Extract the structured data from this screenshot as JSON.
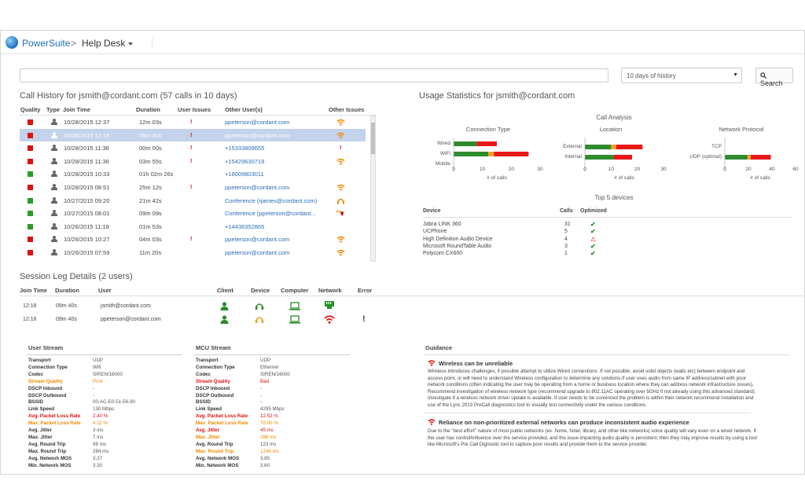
{
  "header": {
    "brand": "PowerSuite",
    "separator": ">",
    "section": "Help Desk"
  },
  "search": {
    "value": "",
    "placeholder": "",
    "history_selected": "10 days of history",
    "button_label": "Search"
  },
  "call_history": {
    "title": "Call History for jsmith@cordant.com (57 calls in 10 days)",
    "columns": [
      "Quality",
      "Type",
      "Join Time",
      "Duration",
      "User Issues",
      "Other User(s)",
      "Other Issues"
    ],
    "rows": [
      {
        "quality": "red",
        "join": "10/28/2015 12:37",
        "duration": "12m 03s",
        "user_issue": "!",
        "other": "ppeterson@cordant.com",
        "other_issue": "wifi-red"
      },
      {
        "quality": "red",
        "join": "10/28/2015 12:16",
        "duration": "09m 40s",
        "user_issue": "!",
        "other": "ppeterson@cordant.com",
        "other_issue": "wifi-red",
        "selected": true
      },
      {
        "quality": "red",
        "join": "10/28/2015 11:36",
        "duration": "00m 00s",
        "user_issue": "!",
        "other": "+15333809655",
        "other_issue": "!"
      },
      {
        "quality": "red",
        "join": "10/28/2015 11:36",
        "duration": "03m 55s",
        "user_issue": "!",
        "other": "+15429630719",
        "other_issue": "wifi-red"
      },
      {
        "quality": "green",
        "join": "10/28/2015 10:33",
        "duration": "01h 02m 26s",
        "user_issue": "",
        "other": "+18009803011",
        "other_issue": ""
      },
      {
        "quality": "red",
        "join": "10/28/2015 08:51",
        "duration": "25m 12s",
        "user_issue": "!",
        "other": "ppeterson@cordant.com",
        "other_issue": "wifi-red"
      },
      {
        "quality": "green",
        "join": "10/27/2015 09:20",
        "duration": "21m 42s",
        "user_issue": "",
        "other": "Conference (rjames@cordant.com)",
        "other_issue": "headset-orange"
      },
      {
        "quality": "green",
        "join": "10/27/2015 08:01",
        "duration": "09m 09s",
        "user_issue": "",
        "other": "Conference (ppeterson@cordant...",
        "other_issue": "wifi-heart"
      },
      {
        "quality": "green",
        "join": "10/26/2015 11:18",
        "duration": "01m 53s",
        "user_issue": "",
        "other": "+14436352865",
        "other_issue": ""
      },
      {
        "quality": "red",
        "join": "10/26/2015 10:27",
        "duration": "04m 03s",
        "user_issue": "!",
        "other": "ppeterson@cordant.com",
        "other_issue": "wifi-red"
      },
      {
        "quality": "red",
        "join": "10/26/2015 07:59",
        "duration": "11m 20s",
        "user_issue": "",
        "other": "ppeterson@cordant.com",
        "other_issue": "wifi-red"
      }
    ]
  },
  "usage": {
    "title": "Usage Statistics for jsmith@cordant.com",
    "call_analysis": "Call Analysis",
    "colors": {
      "good": "#2e8b2e",
      "warn": "#f0a020",
      "bad": "#e81818"
    },
    "charts": [
      {
        "title": "Connection Type",
        "xlabel": "# of calls",
        "ticks": [
          "0",
          "10",
          "20",
          "30"
        ],
        "xmax": 30,
        "rows": [
          {
            "label": "Wired",
            "good": 8,
            "warn": 0,
            "bad": 7
          },
          {
            "label": "WiFi",
            "good": 12,
            "warn": 2,
            "bad": 12
          },
          {
            "label": "Mobile",
            "good": 0,
            "warn": 0,
            "bad": 0
          }
        ]
      },
      {
        "title": "Location",
        "xlabel": "# of calls",
        "ticks": [
          "0",
          "10",
          "20",
          "30"
        ],
        "xmax": 30,
        "rows": [
          {
            "label": "External",
            "good": 10,
            "warn": 2,
            "bad": 10
          },
          {
            "label": "Internal",
            "good": 11,
            "warn": 0,
            "bad": 7
          }
        ]
      },
      {
        "title": "Network Protocol",
        "xlabel": "# of calls",
        "ticks": [
          "0",
          "20",
          "40",
          "60"
        ],
        "xmax": 60,
        "rows": [
          {
            "label": "TCP",
            "good": 0,
            "warn": 0,
            "bad": 0
          },
          {
            "label": "UDP (optimal)",
            "good": 19,
            "warn": 3,
            "bad": 17
          }
        ]
      }
    ],
    "top5_title": "Top 5 devices",
    "device_headers": [
      "Device",
      "Calls",
      "Optimized"
    ],
    "devices": [
      {
        "name": "Jabra LINK 360",
        "calls": "31",
        "status": "✔"
      },
      {
        "name": "UCPhone",
        "calls": "5",
        "status": "✔"
      },
      {
        "name": "High Definition Audio Device",
        "calls": "4",
        "status": "⚠"
      },
      {
        "name": "Microsoft RoundTable Audio",
        "calls": "3",
        "status": "✔"
      },
      {
        "name": "Polycom CX600",
        "calls": "1",
        "status": "✔"
      }
    ]
  },
  "session": {
    "title": "Session Leg Details (2 users)",
    "headers": [
      "Join Time",
      "Duration",
      "User",
      "Client",
      "Device",
      "Computer",
      "Network",
      "Error"
    ],
    "rows": [
      {
        "time": "12:16",
        "duration": "09m 40s",
        "user": "jsmith@cordant.com"
      },
      {
        "time": "12:16",
        "duration": "09m 40s",
        "user": "ppeterson@cordant.com"
      }
    ]
  },
  "user_stream": {
    "title": "User Stream",
    "rows": [
      {
        "label": "Transport",
        "value": "UDP",
        "style": "n"
      },
      {
        "label": "Connection Type",
        "value": "Wifi",
        "style": "n"
      },
      {
        "label": "Codec",
        "value": "SIREN/16000",
        "style": "n"
      },
      {
        "label": "Stream Quality",
        "value": "Poor",
        "style": "o"
      },
      {
        "label": "DSCP Inbound",
        "value": "-",
        "style": "n"
      },
      {
        "label": "DSCP Outbound",
        "value": "-",
        "style": "n"
      },
      {
        "label": "BSSID",
        "value": "00-AC-E0-51-56-90",
        "style": "n"
      },
      {
        "label": "Link Speed",
        "value": "130 Mbps",
        "style": "n"
      },
      {
        "label": "Avg. Packet Loss Rate",
        "value": "2.40 %",
        "style": "r"
      },
      {
        "label": "Max. Packet Loss Rate",
        "value": "4.11 %",
        "style": "o"
      },
      {
        "label": "Avg. Jitter",
        "value": "3 ms",
        "style": "n"
      },
      {
        "label": "Max. Jitter",
        "value": "7 ms",
        "style": "n"
      },
      {
        "label": "Avg. Round Trip",
        "value": "98 ms",
        "style": "n"
      },
      {
        "label": "Max. Round Trip",
        "value": "284 ms",
        "style": "n"
      },
      {
        "label": "Avg. Network MOS",
        "value": "3.37",
        "style": "n"
      },
      {
        "label": "Min. Network MOS",
        "value": "3.30",
        "style": "n"
      }
    ]
  },
  "mcu_stream": {
    "title": "MCU Stream",
    "rows": [
      {
        "label": "Transport",
        "value": "UDP",
        "style": "n"
      },
      {
        "label": "Connection Type",
        "value": "Ethernet",
        "style": "n"
      },
      {
        "label": "Codec",
        "value": "SIREN/16000",
        "style": "n"
      },
      {
        "label": "Stream Quality",
        "value": "Bad",
        "style": "r"
      },
      {
        "label": "DSCP Inbound",
        "value": "-",
        "style": "n"
      },
      {
        "label": "DSCP Outbound",
        "value": "-",
        "style": "n"
      },
      {
        "label": "BSSID",
        "value": "-",
        "style": "n"
      },
      {
        "label": "Link Speed",
        "value": "4295 Mbps",
        "style": "n"
      },
      {
        "label": "Avg. Packet Loss Rate",
        "value": "12.52 %",
        "style": "r"
      },
      {
        "label": "Max. Packet Loss Rate",
        "value": "70.00 %",
        "style": "o"
      },
      {
        "label": "Avg. Jitter",
        "value": "45 ms",
        "style": "r"
      },
      {
        "label": "Max. Jitter",
        "value": "288 ms",
        "style": "o"
      },
      {
        "label": "Avg. Round Trip",
        "value": "123 ms",
        "style": "n"
      },
      {
        "label": "Max. Round Trip",
        "value": "1246 ms",
        "style": "o"
      },
      {
        "label": "Avg. Network MOS",
        "value": "3.85",
        "style": "n"
      },
      {
        "label": "Min. Network MOS",
        "value": "3.60",
        "style": "n"
      }
    ]
  },
  "guidance": {
    "title": "Guidance",
    "items": [
      {
        "title": "Wireless can be unreliable",
        "text": "Wireless introduces challenges, if possible attempt to utilize Wired connections. If not possible, avoid solid objects (walls etc) between endpoint and access point, or will need to understand Wireless configuration to determine any solutions.If user uses audio from same IP address/subnet with poor network conditions (often indicating the user may be operating from a home or business location where they can address network infrastructure issues). Recommend investigation of wireless network type (recommend upgrade to 802.11AC operating over 5GHz if not already using this advanced standard). Investigate if a wireless network driver update is available. If user needs to be convinced the problem is within their network recommend installation and use of the Lync 2013 PreCall diagnostics tool to visually test connectivity under the various conditions"
      },
      {
        "title": "Reliance on non-prioritized external networks can produce inconsistent audio experience",
        "text": "Due to the \"best effort\" nature of most public networks (ex. home, hotel, library, and other like networks) voice quality will vary even on a wired network. If the user has control/influence over the service provided, and the issue impacting audio quality is persistent, then they may improve results by using a tool like Microsoft's Pre Call Dignostic tool to capture poor results and provide them to the service provider."
      }
    ]
  }
}
